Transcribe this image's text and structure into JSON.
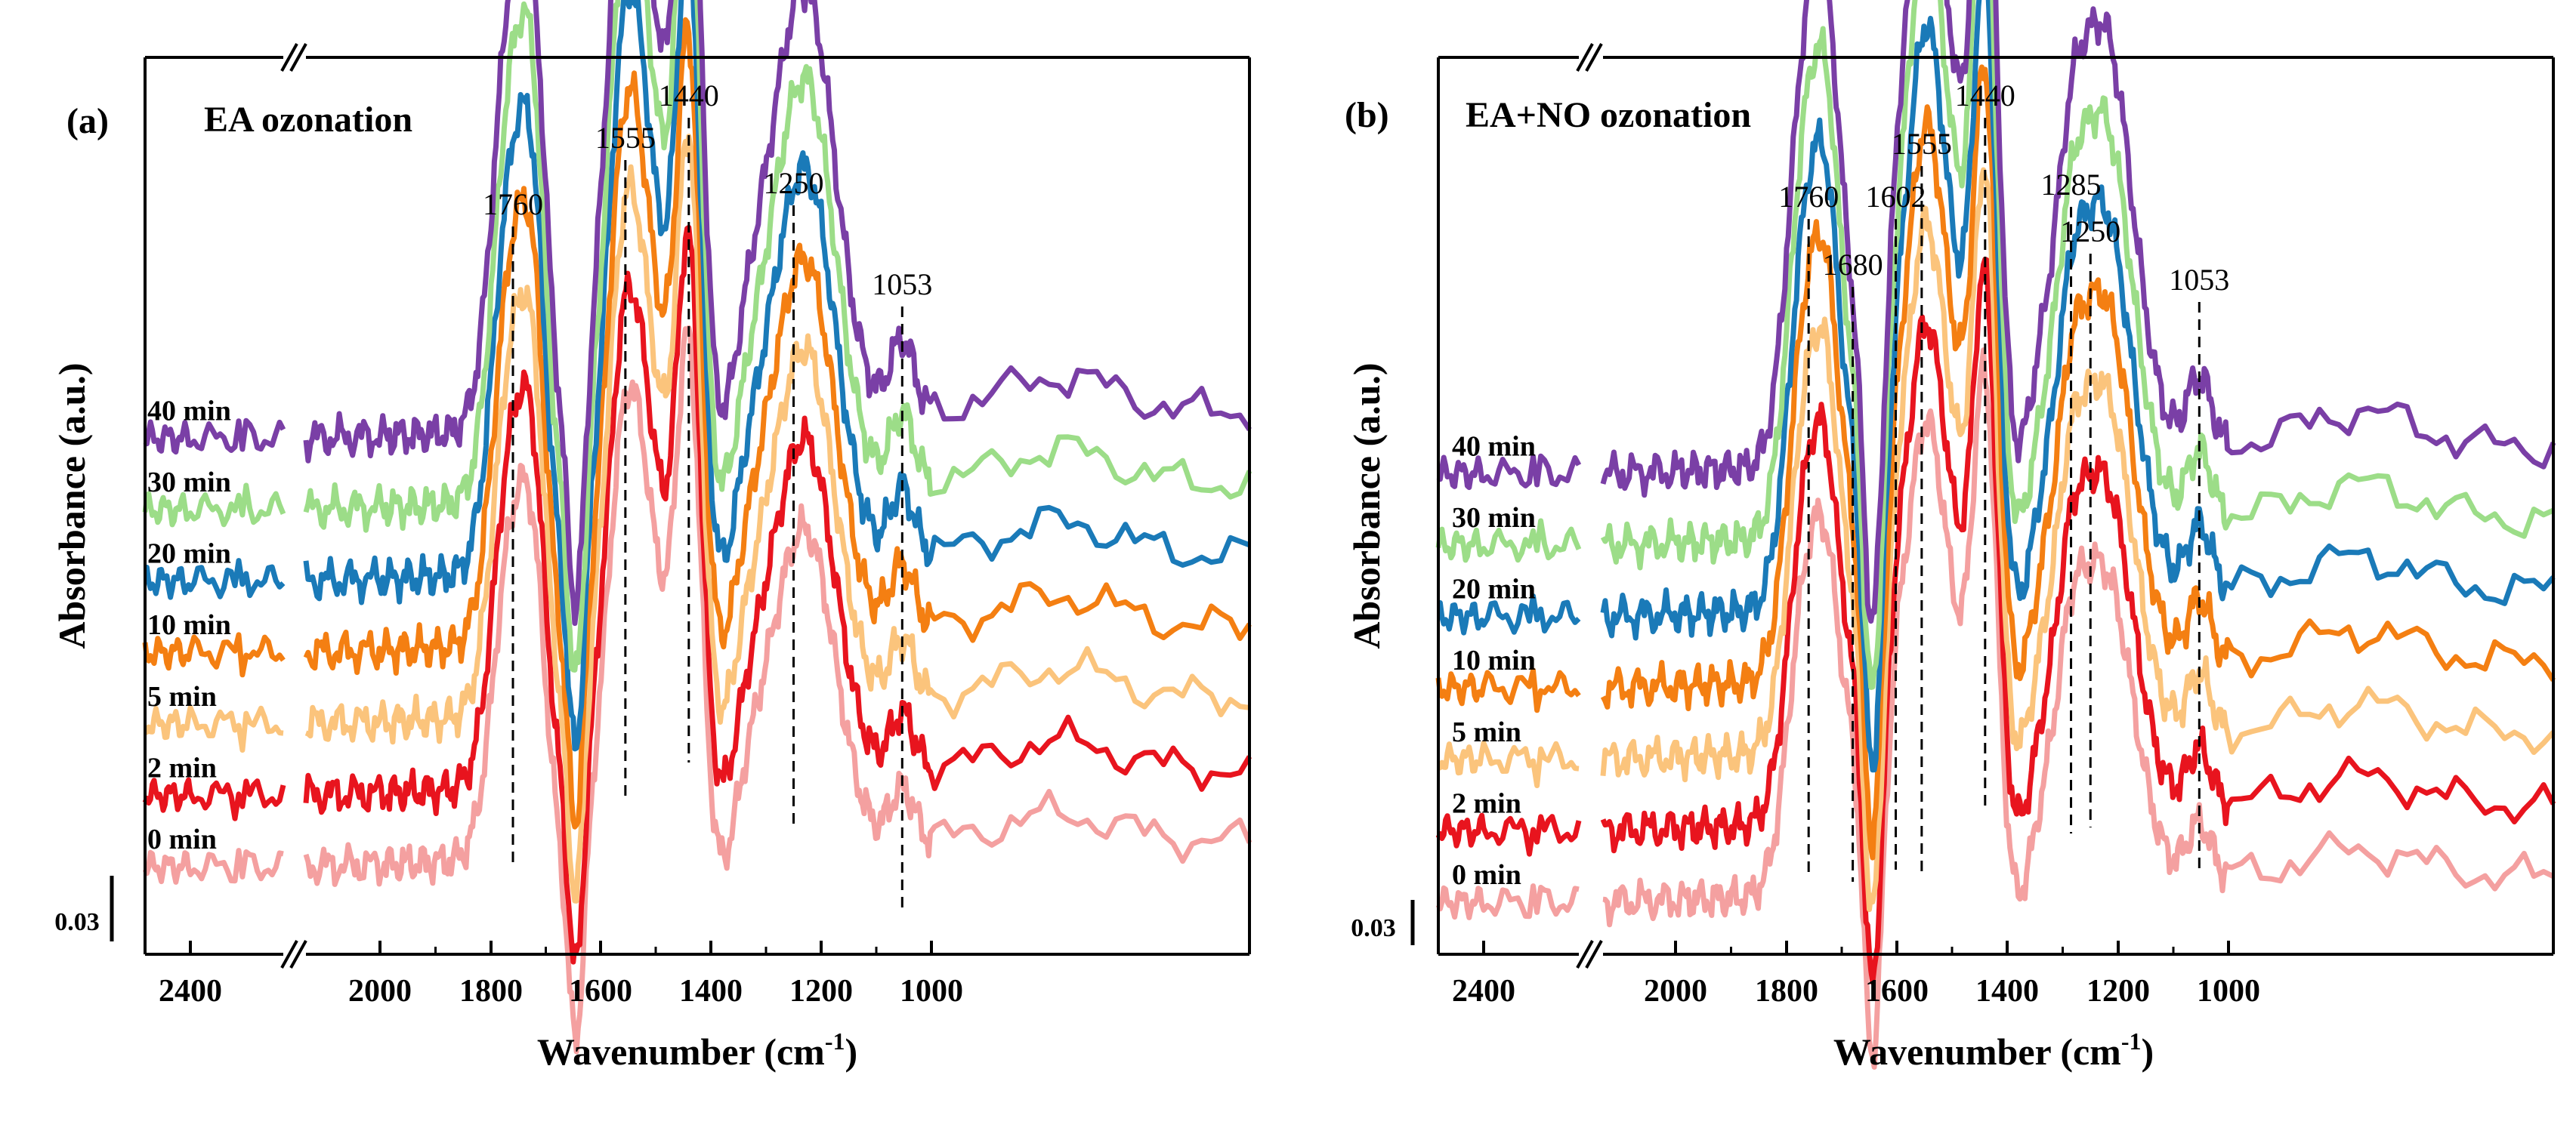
{
  "chart_data": [
    {
      "type": "line",
      "panel_label": "(a)",
      "title": "EA ozonation",
      "xlabel": "Wavenumber (cm",
      "xlabel_sup": "-1",
      "xlabel_close": ")",
      "ylabel": "Absorbance (a.u.)",
      "x_reversed": true,
      "x_axis_break": true,
      "x_ticks": [
        2400,
        2000,
        1800,
        1600,
        1400,
        1200,
        1000
      ],
      "x_tick_labels": [
        "2400",
        "2000",
        "1800",
        "1600",
        "1400",
        "1200",
        "1000"
      ],
      "scale_bar": {
        "label": "0.03",
        "value": 0.03
      },
      "peak_markers": [
        {
          "label": "1760",
          "x": 1760
        },
        {
          "label": "1555",
          "x": 1555
        },
        {
          "label": "1440",
          "x": 1440
        },
        {
          "label": "1250",
          "x": 1250
        },
        {
          "label": "1053",
          "x": 1053
        }
      ],
      "series": [
        {
          "name": "0 min",
          "color": "#F4A0A0",
          "offset": 0.0
        },
        {
          "name": "2 min",
          "color": "#E8141E",
          "offset": 0.011
        },
        {
          "name": "5 min",
          "color": "#FBC47C",
          "offset": 0.022
        },
        {
          "name": "10 min",
          "color": "#F47F12",
          "offset": 0.033
        },
        {
          "name": "20 min",
          "color": "#1A7AB8",
          "offset": 0.044
        },
        {
          "name": "30 min",
          "color": "#9CDD88",
          "offset": 0.055
        },
        {
          "name": "40 min",
          "color": "#7A3FA6",
          "offset": 0.066
        }
      ]
    },
    {
      "type": "line",
      "panel_label": "(b)",
      "title": "EA+NO ozonation",
      "xlabel": "Wavenumber (cm",
      "xlabel_sup": "-1",
      "xlabel_close": ")",
      "ylabel": "Absorbance (a.u.)",
      "x_reversed": true,
      "x_axis_break": true,
      "x_ticks": [
        2400,
        2000,
        1800,
        1600,
        1400,
        1200,
        1000
      ],
      "x_tick_labels": [
        "2400",
        "2000",
        "1800",
        "1600",
        "1400",
        "1200",
        "1000"
      ],
      "scale_bar": {
        "label": "0.03",
        "value": 0.03
      },
      "peak_markers": [
        {
          "label": "1760",
          "x": 1760
        },
        {
          "label": "1680",
          "x": 1680
        },
        {
          "label": "1602",
          "x": 1602
        },
        {
          "label": "1555",
          "x": 1555
        },
        {
          "label": "1440",
          "x": 1440
        },
        {
          "label": "1285",
          "x": 1285
        },
        {
          "label": "1250",
          "x": 1250
        },
        {
          "label": "1053",
          "x": 1053
        }
      ],
      "series": [
        {
          "name": "0 min",
          "color": "#F4A0A0",
          "offset": 0.0
        },
        {
          "name": "2 min",
          "color": "#E8141E",
          "offset": 0.011
        },
        {
          "name": "5 min",
          "color": "#FBC47C",
          "offset": 0.022
        },
        {
          "name": "10 min",
          "color": "#F47F12",
          "offset": 0.033
        },
        {
          "name": "20 min",
          "color": "#1A7AB8",
          "offset": 0.044
        },
        {
          "name": "30 min",
          "color": "#9CDD88",
          "offset": 0.055
        },
        {
          "name": "40 min",
          "color": "#7A3FA6",
          "offset": 0.066
        }
      ]
    }
  ]
}
